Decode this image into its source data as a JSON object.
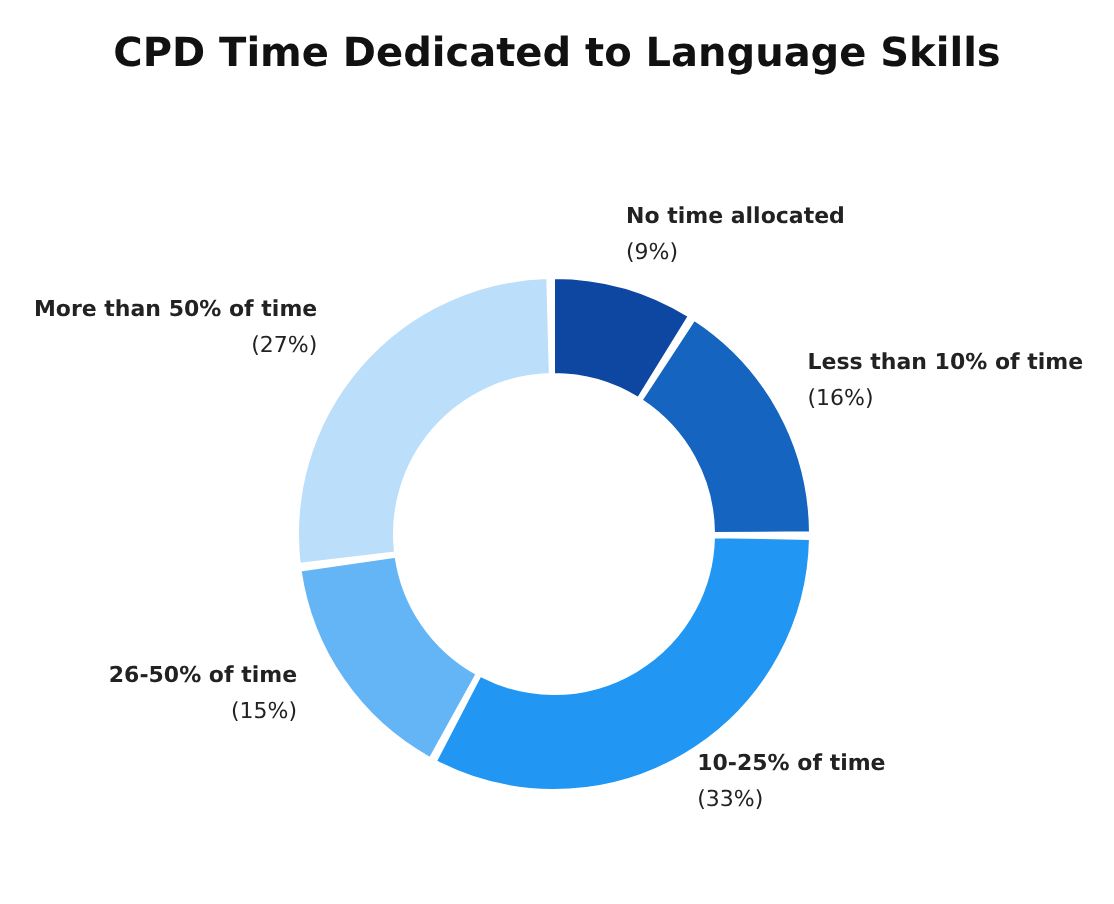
{
  "chart_data": {
    "type": "donut",
    "title": "CPD Time Dedicated to Language Skills",
    "categories": [
      "No time allocated",
      "Less than 10% of time",
      "10-25% of time",
      "26-50% of time",
      "More than 50% of time"
    ],
    "values": [
      9,
      16,
      33,
      15,
      27
    ],
    "colors": [
      "#0d47a1",
      "#1565c0",
      "#2196f3",
      "#64b5f6",
      "#bbdefb"
    ],
    "value_labels": [
      "(9%)",
      "(16%)",
      "(33%)",
      "(15%)",
      "(27%)"
    ],
    "legend": false
  }
}
